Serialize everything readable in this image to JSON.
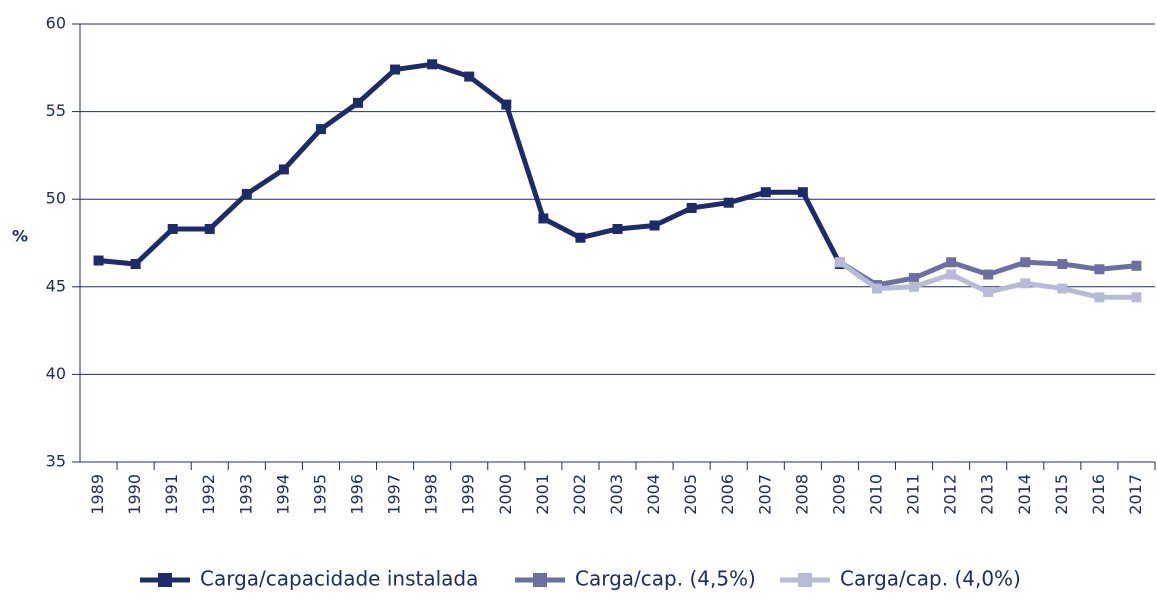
{
  "chart_data": {
    "type": "line",
    "y_label": "%",
    "categories": [
      "1989",
      "1990",
      "1991",
      "1992",
      "1993",
      "1994",
      "1995",
      "1996",
      "1997",
      "1998",
      "1999",
      "2000",
      "2001",
      "2002",
      "2003",
      "2004",
      "2005",
      "2006",
      "2007",
      "2008",
      "2009",
      "2010",
      "2011",
      "2012",
      "2013",
      "2014",
      "2015",
      "2016",
      "2017"
    ],
    "series": [
      {
        "name": "Carga/capacidade instalada",
        "color": "#1c2b6b",
        "values": [
          46.5,
          46.3,
          48.3,
          48.3,
          50.3,
          51.7,
          54.0,
          55.5,
          57.4,
          57.7,
          57.0,
          55.4,
          48.9,
          47.8,
          48.3,
          48.5,
          49.5,
          49.8,
          50.4,
          50.4,
          46.3,
          null,
          null,
          null,
          null,
          null,
          null,
          null,
          null
        ]
      },
      {
        "name": "Carga/cap. (4,5%)",
        "color": "#6b6fa3",
        "values": [
          null,
          null,
          null,
          null,
          null,
          null,
          null,
          null,
          null,
          null,
          null,
          null,
          null,
          null,
          null,
          null,
          null,
          null,
          null,
          null,
          46.4,
          45.1,
          45.5,
          46.4,
          45.7,
          46.4,
          46.3,
          46.0,
          46.2
        ]
      },
      {
        "name": "Carga/cap. (4,0%)",
        "color": "#b8bbd8",
        "values": [
          null,
          null,
          null,
          null,
          null,
          null,
          null,
          null,
          null,
          null,
          null,
          null,
          null,
          null,
          null,
          null,
          null,
          null,
          null,
          null,
          46.4,
          44.9,
          45.0,
          45.7,
          44.7,
          45.2,
          44.9,
          44.4,
          44.4
        ]
      }
    ],
    "ylim": [
      35,
      60
    ],
    "yticks": [
      35,
      40,
      45,
      50,
      55,
      60
    ],
    "grid": true,
    "legend": "bottom"
  }
}
